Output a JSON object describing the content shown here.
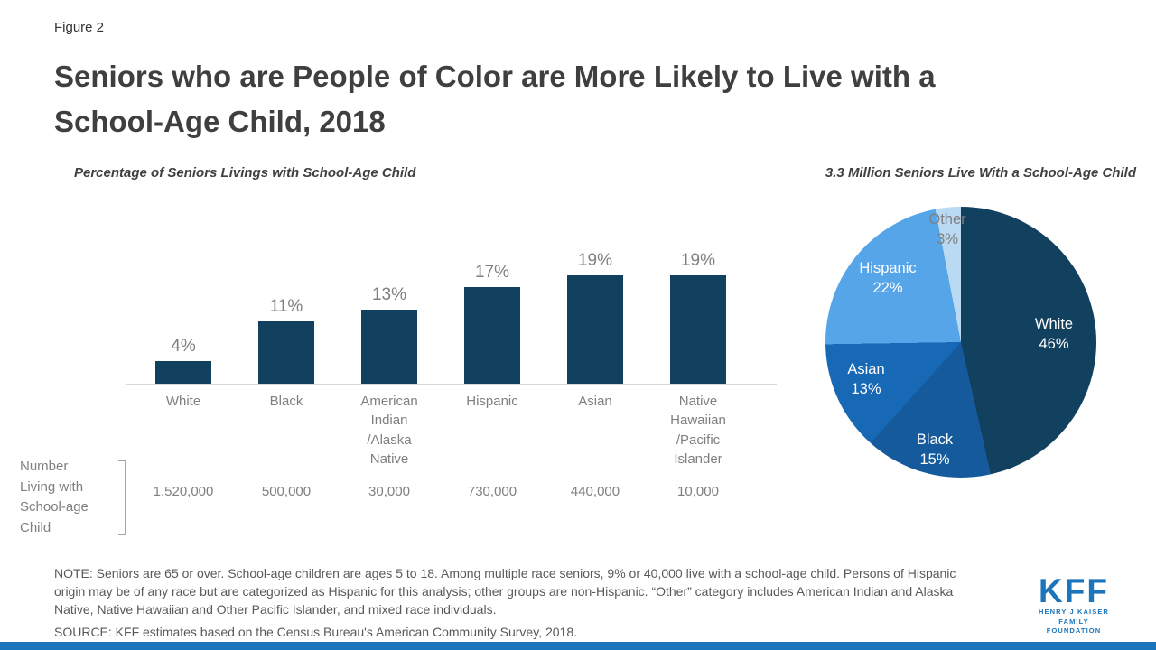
{
  "figure_label": "Figure 2",
  "title": "Seniors who are People of Color are More Likely to Live with a\nSchool-Age Child, 2018",
  "bar_subtitle": "Percentage of Seniors Livings with School-Age Child",
  "pie_subtitle": "3.3 Million Seniors Live With a School-Age Child",
  "counts_label": "Number\nLiving with\nSchool-age\nChild",
  "note": "NOTE:  Seniors are 65 or over.  School-age children are ages 5 to 18.  Among multiple race seniors, 9% or 40,000 live with a school-age child. Persons of Hispanic origin may be of any race but are categorized as Hispanic for this analysis; other groups are non-Hispanic.  “Other” category includes American Indian and Alaska Native, Native Hawaiian and Other Pacific Islander,  and mixed race individuals.",
  "source": "SOURCE: KFF estimates based on the Census Bureau's American Community Survey,  2018.",
  "logo": {
    "name": "KFF",
    "sub1": "HENRY J KAISER",
    "sub2": "FAMILY FOUNDATION"
  },
  "colors": {
    "bar": "#12405F",
    "accent_blue": "#1B75BC",
    "axis": "#d6d6d6",
    "pie_slices": [
      "#12405F",
      "#155A9C",
      "#1768B5",
      "#56A5E8",
      "#BAD9F2"
    ]
  },
  "chart_data": [
    {
      "type": "bar",
      "title": "Percentage of Seniors Livings with School-Age Child",
      "categories": [
        "White",
        "Black",
        "American Indian /Alaska Native",
        "Hispanic",
        "Asian",
        "Native Hawaiian /Pacific Islander"
      ],
      "category_labels": [
        "White",
        "Black",
        "American\nIndian\n/Alaska\nNative",
        "Hispanic",
        "Asian",
        "Native\nHawaiian\n/Pacific\nIslander"
      ],
      "values": [
        4,
        11,
        13,
        17,
        19,
        19
      ],
      "value_labels": [
        "4%",
        "11%",
        "13%",
        "17%",
        "19%",
        "19%"
      ],
      "counts": [
        "1,520,000",
        "500,000",
        "30,000",
        "730,000",
        "440,000",
        "10,000"
      ],
      "counts_label": "Number Living with School-age Child",
      "ylim": [
        0,
        20
      ],
      "bar_color": "#12405F",
      "grid": false
    },
    {
      "type": "pie",
      "title": "3.3 Million Seniors Live With a School-Age Child",
      "labels": [
        "White",
        "Black",
        "Asian",
        "Hispanic",
        "Other"
      ],
      "values": [
        46,
        15,
        13,
        22,
        3
      ],
      "slice_labels": [
        "White\n46%",
        "Black\n15%",
        "Asian\n13%",
        "Hispanic\n22%",
        "Other\n3%"
      ],
      "colors": [
        "#12405F",
        "#155A9C",
        "#1768B5",
        "#56A5E8",
        "#BAD9F2"
      ],
      "start_angle_deg": 0,
      "direction": "clockwise"
    }
  ]
}
